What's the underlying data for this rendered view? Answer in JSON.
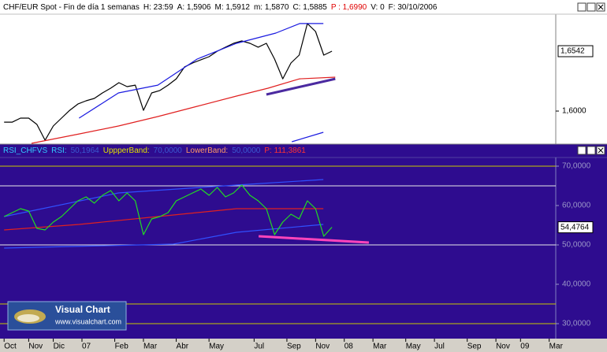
{
  "chart_data": [
    {
      "type": "line",
      "header": [
        {
          "text": "CHF/EUR Spot - Fin de día 1 semanas",
          "color": "#000000"
        },
        {
          "text": "H: 23:59",
          "color": "#000000"
        },
        {
          "text": "A: 1,5906",
          "color": "#000000"
        },
        {
          "text": "M: 1,5912",
          "color": "#000000"
        },
        {
          "text": "m: 1,5870",
          "color": "#000000"
        },
        {
          "text": "C: 1,5885",
          "color": "#000000"
        },
        {
          "text": "P : 1,6990",
          "color": "#e00000"
        },
        {
          "text": "V: 0",
          "color": "#000000"
        },
        {
          "text": "F: 30/10/2006",
          "color": "#000000"
        }
      ],
      "xlim": [
        -1,
        134.6
      ],
      "ylim": [
        1.5708,
        1.6877
      ],
      "yticks": [
        {
          "value": 1.6,
          "label": "1,6000"
        }
      ],
      "last": {
        "value": 1.6542,
        "label": "1,6542"
      },
      "series": [
        {
          "color": "#000000",
          "x": [
            0,
            2,
            4,
            6,
            8,
            10,
            12,
            14,
            16,
            18,
            20,
            22,
            24,
            26,
            28,
            30,
            32,
            34,
            36,
            38,
            40,
            42,
            44,
            46,
            48,
            50,
            52,
            54,
            56,
            58,
            60,
            62,
            64,
            66,
            68,
            70,
            72,
            74,
            76,
            78,
            80
          ],
          "values": [
            1.59,
            1.59,
            1.5936,
            1.5936,
            1.5879,
            1.5736,
            1.5865,
            1.5936,
            1.6007,
            1.6064,
            1.6093,
            1.6114,
            1.6164,
            1.6207,
            1.6257,
            1.6221,
            1.6235,
            1.6007,
            1.6164,
            1.6186,
            1.6235,
            1.6292,
            1.6399,
            1.6435,
            1.6464,
            1.6492,
            1.6542,
            1.6578,
            1.6613,
            1.6635,
            1.6613,
            1.6578,
            1.6613,
            1.6471,
            1.6292,
            1.6435,
            1.6506,
            1.6792,
            1.672,
            1.6506,
            1.6542
          ]
        },
        {
          "color": "#1a1ae0",
          "x": [
            18.3,
            27.9,
            37.5,
            47.1,
            56.7,
            66.3,
            72.1,
            77.9
          ],
          "values": [
            1.5936,
            1.6164,
            1.6235,
            1.6471,
            1.6613,
            1.6706,
            1.6792,
            1.6792
          ]
        },
        {
          "color": "#e02020",
          "x": [
            6.7,
            18.3,
            27.9,
            37.5,
            47.1,
            56.7,
            64.4,
            72.1,
            80.8
          ],
          "values": [
            1.5708,
            1.5793,
            1.5865,
            1.595,
            1.6043,
            1.6136,
            1.6207,
            1.6292,
            1.6307
          ]
        },
        {
          "color": "#1a1ae0",
          "x": [
            70.2,
            77.9
          ],
          "values": [
            1.5722,
            1.5808
          ]
        }
      ],
      "trendlines": [
        {
          "color": "#4b2aa0",
          "x": [
            64.0,
            80.8
          ],
          "values": [
            1.615,
            1.6292
          ]
        }
      ]
    },
    {
      "type": "line",
      "header": [
        {
          "text": "RSI_CHFVS",
          "color": "#33ccff"
        },
        {
          "text": "RSI:",
          "color": "#33ccff"
        },
        {
          "text": "50,1964",
          "color": "#3a5bd0"
        },
        {
          "text": "UppperBand:",
          "color": "#e0e000"
        },
        {
          "text": "70,0000",
          "color": "#3a5bd0"
        },
        {
          "text": "LowerBand:",
          "color": "#ff9966"
        },
        {
          "text": "50,0000",
          "color": "#3a5bd0"
        },
        {
          "text": "P: 111,3861",
          "color": "#ff3333"
        }
      ],
      "xlim": [
        -1,
        134.6
      ],
      "ylim": [
        26.6,
        72.2
      ],
      "yticks": [
        {
          "value": 30,
          "label": "30,0000"
        },
        {
          "value": 40,
          "label": "40,0000"
        },
        {
          "value": 50,
          "label": "50,0000"
        },
        {
          "value": 60,
          "label": "60,0000"
        },
        {
          "value": 70,
          "label": "70,0000"
        }
      ],
      "levels": [
        {
          "value": 70,
          "color": "#c8c800"
        },
        {
          "value": 65,
          "color": "#e8e8e8"
        },
        {
          "value": 50,
          "color": "#e8e8e8"
        },
        {
          "value": 35,
          "color": "#c8c800"
        },
        {
          "value": 30,
          "color": "#c8c800"
        }
      ],
      "last": {
        "value": 54.4764,
        "label": "54,4764"
      },
      "series": [
        {
          "color": "#3050ff",
          "x": [
            0,
            27.9,
            56.7,
            77.9
          ],
          "values": [
            57.2,
            63.2,
            65.2,
            66.6
          ]
        },
        {
          "color": "#3050ff",
          "x": [
            0,
            41.3,
            56.7,
            77.9
          ],
          "values": [
            49.2,
            50.2,
            53.2,
            55.2
          ]
        },
        {
          "color": "#e02020",
          "x": [
            0,
            18.3,
            37.5,
            56.7,
            77.9
          ],
          "values": [
            53.8,
            55.2,
            57.2,
            59.2,
            59.2
          ]
        },
        {
          "color": "#22dd22",
          "x": [
            0,
            2,
            4,
            6,
            8,
            10,
            12,
            14,
            16,
            18,
            20,
            22,
            24,
            26,
            28,
            30,
            32,
            34,
            36,
            38,
            40,
            42,
            44,
            46,
            48,
            50,
            52,
            54,
            56,
            58,
            60,
            62,
            64,
            66,
            68,
            70,
            72,
            74,
            76,
            78,
            80
          ],
          "values": [
            57.2,
            58.2,
            59.2,
            58.6,
            54.2,
            53.8,
            55.8,
            57.2,
            59.2,
            61.2,
            62.2,
            60.6,
            62.6,
            63.8,
            61.2,
            63.2,
            61.2,
            52.6,
            56.6,
            57.2,
            58.2,
            61.2,
            62.2,
            63.2,
            64.2,
            62.6,
            64.6,
            62.2,
            63.2,
            65.2,
            62.6,
            61.2,
            59.2,
            52.6,
            55.8,
            57.8,
            56.6,
            61.2,
            59.2,
            52.2,
            54.5
          ]
        }
      ],
      "trendlines": [
        {
          "color": "#ff44bb",
          "x": [
            62.1,
            89.0
          ],
          "values": [
            52.2,
            50.6
          ]
        }
      ],
      "xticks": [
        {
          "value": 0,
          "label": "Oct"
        },
        {
          "value": 6,
          "label": "Nov"
        },
        {
          "value": 12,
          "label": "Dic"
        },
        {
          "value": 19,
          "label": "07"
        },
        {
          "value": 27,
          "label": "Feb"
        },
        {
          "value": 34,
          "label": "Mar"
        },
        {
          "value": 42,
          "label": "Abr"
        },
        {
          "value": 50,
          "label": "May"
        },
        {
          "value": 61,
          "label": "Jul"
        },
        {
          "value": 69,
          "label": "Sep"
        },
        {
          "value": 76,
          "label": "Nov"
        },
        {
          "value": 83,
          "label": "08"
        },
        {
          "value": 90,
          "label": "Mar"
        },
        {
          "value": 98,
          "label": "May"
        },
        {
          "value": 105,
          "label": "Jul"
        },
        {
          "value": 113,
          "label": "Sep"
        },
        {
          "value": 120,
          "label": "Nov"
        },
        {
          "value": 126,
          "label": "09"
        },
        {
          "value": 133,
          "label": "Mar"
        }
      ]
    }
  ],
  "watermark": {
    "title": "Visual Chart",
    "url": "www.visualchart.com"
  }
}
